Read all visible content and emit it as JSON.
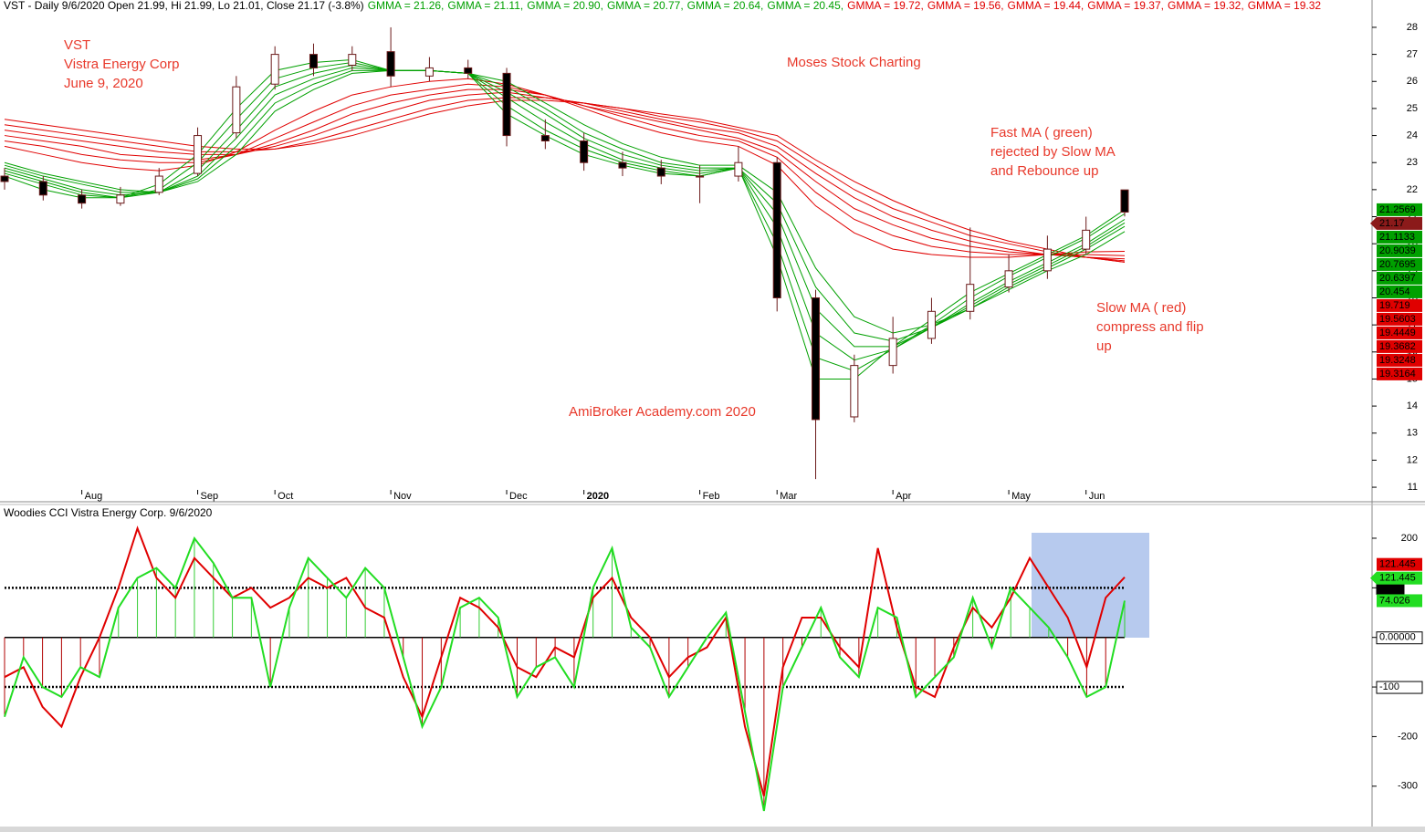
{
  "chart_data": [
    {
      "type": "candlestick",
      "header": "VST - Daily 9/6/2020 Open 21.99, Hi 21.99, Lo 21.01, Close 21.17 (-3.8%)",
      "annotations": [
        [
          "VST",
          "Vistra Energy Corp",
          "June 9, 2020"
        ],
        [
          "Moses Stock Charting"
        ],
        [
          "Fast MA  ( green)",
          "rejected by Slow MA",
          "and Rebounce up"
        ],
        [
          "Slow MA  ( red)",
          "compress and flip",
          "up"
        ],
        [
          "AmiBroker Academy.com  2020"
        ]
      ],
      "categories": [
        null,
        null,
        "Aug",
        null,
        null,
        "Sep",
        null,
        "Oct",
        null,
        null,
        "Nov",
        null,
        null,
        "Dec",
        null,
        "2020",
        null,
        null,
        "Feb",
        null,
        "Mar",
        null,
        null,
        "Apr",
        null,
        null,
        "May",
        null,
        "Jun",
        null
      ],
      "open": [
        22.5,
        22.3,
        21.8,
        21.5,
        21.9,
        22.6,
        24.1,
        25.9,
        27.0,
        26.6,
        27.1,
        26.2,
        26.5,
        26.3,
        24.0,
        23.8,
        23.0,
        22.8,
        22.5,
        22.5,
        23.0,
        18.0,
        13.6,
        15.5,
        16.5,
        17.5,
        18.4,
        19.0,
        19.8,
        21.99
      ],
      "high": [
        22.8,
        22.5,
        22.0,
        22.1,
        22.8,
        24.3,
        26.2,
        27.3,
        27.4,
        27.3,
        28.0,
        26.9,
        26.8,
        26.5,
        24.6,
        24.1,
        23.4,
        23.1,
        22.9,
        23.6,
        23.2,
        18.3,
        15.9,
        17.3,
        18.0,
        20.6,
        19.6,
        20.3,
        21.0,
        21.99
      ],
      "low": [
        22.0,
        21.6,
        21.3,
        21.4,
        21.8,
        22.5,
        23.9,
        25.7,
        26.2,
        26.4,
        25.8,
        26.0,
        26.1,
        23.6,
        23.5,
        22.7,
        22.5,
        22.2,
        21.5,
        22.3,
        17.5,
        11.3,
        13.4,
        15.2,
        16.3,
        17.2,
        18.2,
        18.7,
        19.6,
        21.01
      ],
      "close": [
        22.3,
        21.8,
        21.5,
        21.8,
        22.5,
        24.0,
        25.8,
        27.0,
        26.5,
        27.0,
        26.2,
        26.5,
        26.3,
        24.0,
        23.8,
        23.0,
        22.8,
        22.5,
        22.5,
        23.0,
        18.0,
        13.5,
        15.5,
        16.5,
        17.5,
        18.5,
        19.0,
        19.8,
        20.5,
        21.17
      ],
      "up_color": "#ffffff",
      "down_color": "#000000",
      "wick_color": "#6b1a1a",
      "series": [
        {
          "name": "GMMA = 21.26,",
          "color": "#00a000",
          "values": [
            22.5,
            22.0,
            21.7,
            21.7,
            22.2,
            23.3,
            25.0,
            26.4,
            26.7,
            26.8,
            26.4,
            26.4,
            26.3,
            24.8,
            24.0,
            23.3,
            22.9,
            22.6,
            22.5,
            22.8,
            19.5,
            15.0,
            15.0,
            16.2,
            17.2,
            18.2,
            18.9,
            19.6,
            20.3,
            21.26
          ]
        },
        {
          "name": "GMMA = 21.11,",
          "color": "#00a000",
          "values": [
            22.6,
            22.2,
            21.8,
            21.7,
            22.0,
            23.0,
            24.6,
            26.1,
            26.5,
            26.7,
            26.4,
            26.4,
            26.3,
            25.1,
            24.2,
            23.5,
            23.0,
            22.7,
            22.5,
            22.8,
            20.0,
            15.8,
            15.3,
            16.1,
            17.0,
            18.0,
            18.8,
            19.5,
            20.2,
            21.11
          ]
        },
        {
          "name": "GMMA = 20.90,",
          "color": "#00a000",
          "values": [
            22.7,
            22.3,
            21.9,
            21.7,
            21.9,
            22.7,
            24.2,
            25.8,
            26.3,
            26.6,
            26.4,
            26.4,
            26.3,
            25.4,
            24.5,
            23.7,
            23.1,
            22.8,
            22.6,
            22.8,
            20.6,
            16.7,
            15.7,
            16.1,
            16.9,
            17.8,
            18.6,
            19.3,
            20.0,
            20.9
          ]
        },
        {
          "name": "GMMA = 20.77,",
          "color": "#00a000",
          "values": [
            22.8,
            22.4,
            22.0,
            21.8,
            21.9,
            22.5,
            23.9,
            25.5,
            26.1,
            26.5,
            26.4,
            26.4,
            26.3,
            25.6,
            24.8,
            23.9,
            23.3,
            22.9,
            22.7,
            22.8,
            21.1,
            17.6,
            16.2,
            16.2,
            16.9,
            17.7,
            18.5,
            19.2,
            19.9,
            20.77
          ]
        },
        {
          "name": "GMMA = 20.64,",
          "color": "#00a000",
          "values": [
            22.9,
            22.5,
            22.2,
            21.9,
            21.9,
            22.4,
            23.6,
            25.2,
            25.9,
            26.4,
            26.4,
            26.4,
            26.3,
            25.8,
            25.0,
            24.1,
            23.5,
            23.0,
            22.8,
            22.8,
            21.5,
            18.4,
            16.7,
            16.4,
            16.9,
            17.6,
            18.4,
            19.1,
            19.8,
            20.64
          ]
        },
        {
          "name": "GMMA = 20.45,",
          "color": "#00a000",
          "values": [
            23.0,
            22.6,
            22.3,
            22.0,
            21.9,
            22.3,
            23.3,
            24.9,
            25.7,
            26.3,
            26.4,
            26.4,
            26.3,
            26.0,
            25.2,
            24.4,
            23.7,
            23.2,
            22.9,
            22.9,
            21.9,
            19.1,
            17.3,
            16.7,
            17.0,
            17.6,
            18.3,
            19.0,
            19.6,
            20.45
          ]
        },
        {
          "name": "GMMA = 19.72,",
          "color": "#e00000",
          "values": [
            23.6,
            23.3,
            23.0,
            22.8,
            22.7,
            22.9,
            23.4,
            24.2,
            24.9,
            25.5,
            25.8,
            26.0,
            26.1,
            25.9,
            25.5,
            25.0,
            24.5,
            24.1,
            23.8,
            23.6,
            22.9,
            21.4,
            20.4,
            19.8,
            19.6,
            19.5,
            19.5,
            19.6,
            19.7,
            19.72
          ]
        },
        {
          "name": "GMMA = 19.56,",
          "color": "#e00000",
          "values": [
            23.8,
            23.6,
            23.3,
            23.1,
            23.0,
            23.0,
            23.3,
            23.9,
            24.5,
            25.1,
            25.5,
            25.7,
            25.9,
            25.8,
            25.5,
            25.1,
            24.7,
            24.3,
            24.0,
            23.8,
            23.2,
            21.9,
            20.9,
            20.3,
            19.9,
            19.7,
            19.6,
            19.6,
            19.6,
            19.56
          ]
        },
        {
          "name": "GMMA = 19.44,",
          "color": "#e00000",
          "values": [
            24.0,
            23.8,
            23.6,
            23.3,
            23.2,
            23.1,
            23.3,
            23.7,
            24.2,
            24.8,
            25.2,
            25.5,
            25.7,
            25.7,
            25.5,
            25.1,
            24.8,
            24.5,
            24.2,
            23.9,
            23.4,
            22.3,
            21.3,
            20.7,
            20.2,
            19.9,
            19.7,
            19.6,
            19.5,
            19.44
          ]
        },
        {
          "name": "GMMA = 19.37,",
          "color": "#e00000",
          "values": [
            24.2,
            24.0,
            23.8,
            23.6,
            23.4,
            23.3,
            23.3,
            23.6,
            24.0,
            24.5,
            24.9,
            25.3,
            25.5,
            25.6,
            25.4,
            25.2,
            24.9,
            24.6,
            24.3,
            24.1,
            23.6,
            22.6,
            21.7,
            21.0,
            20.5,
            20.1,
            19.8,
            19.6,
            19.5,
            19.37
          ]
        },
        {
          "name": "GMMA = 19.32,",
          "color": "#e00000",
          "values": [
            24.4,
            24.2,
            24.0,
            23.8,
            23.6,
            23.4,
            23.4,
            23.5,
            23.8,
            24.2,
            24.6,
            25.0,
            25.3,
            25.4,
            25.4,
            25.2,
            25.0,
            24.7,
            24.5,
            24.2,
            23.8,
            22.9,
            22.0,
            21.3,
            20.8,
            20.3,
            20.0,
            19.7,
            19.5,
            19.32
          ]
        },
        {
          "name": "GMMA = 19.32",
          "color": "#e00000",
          "values": [
            24.6,
            24.4,
            24.2,
            24.0,
            23.8,
            23.6,
            23.5,
            23.5,
            23.7,
            24.0,
            24.4,
            24.8,
            25.1,
            25.3,
            25.3,
            25.2,
            25.0,
            24.8,
            24.6,
            24.3,
            24.0,
            23.1,
            22.3,
            21.6,
            21.0,
            20.5,
            20.1,
            19.8,
            19.5,
            19.32
          ]
        }
      ],
      "price_labels": [
        {
          "value": 21.2569,
          "color": "#00a000"
        },
        {
          "value": 21.17,
          "color": "#8b1a1a",
          "arrow": true
        },
        {
          "value": 21.1133,
          "color": "#00a000"
        },
        {
          "value": 20.9039,
          "color": "#00a000"
        },
        {
          "value": 20.7695,
          "color": "#00a000"
        },
        {
          "value": 20.6397,
          "color": "#00a000"
        },
        {
          "value": 20.454,
          "color": "#00a000"
        },
        {
          "value": 19.719,
          "color": "#e00000"
        },
        {
          "value": 19.5603,
          "color": "#e00000"
        },
        {
          "value": 19.4449,
          "color": "#e00000"
        },
        {
          "value": 19.3682,
          "color": "#e00000"
        },
        {
          "value": 19.3248,
          "color": "#e00000"
        },
        {
          "value": 19.3164,
          "color": "#e00000"
        }
      ],
      "ylim": [
        10.53,
        29.01
      ],
      "yticks": [
        11,
        12,
        13,
        14,
        15,
        16,
        17,
        18,
        19,
        20,
        21,
        22,
        23,
        24,
        25,
        26,
        27,
        28
      ]
    },
    {
      "type": "cci",
      "title": "Woodies CCI  Vistra Energy Corp. 9/6/2020",
      "series": [
        {
          "color": "#e00000",
          "values": [
            -80,
            -60,
            -140,
            -180,
            -80,
            0,
            100,
            220,
            120,
            80,
            160,
            120,
            80,
            100,
            60,
            80,
            120,
            100,
            120,
            60,
            40,
            -80,
            -160,
            -40,
            80,
            60,
            20,
            -60,
            -80,
            -20,
            -40,
            80,
            120,
            40,
            0,
            -80,
            -40,
            -20,
            40,
            -180,
            -320,
            -60,
            40,
            40,
            -20,
            -60,
            180,
            20,
            -100,
            -120,
            -20,
            60,
            20,
            80,
            160,
            100,
            40,
            -60,
            80,
            121.445
          ]
        },
        {
          "color": "#22dd22",
          "histogram": true,
          "values": [
            -160,
            -40,
            -100,
            -120,
            -60,
            -80,
            60,
            120,
            140,
            100,
            200,
            150,
            80,
            80,
            -100,
            60,
            160,
            120,
            80,
            140,
            100,
            -40,
            -180,
            -100,
            60,
            80,
            40,
            -120,
            -60,
            -40,
            -100,
            100,
            180,
            20,
            -20,
            -120,
            -60,
            0,
            50,
            -150,
            -350,
            -100,
            -20,
            60,
            -40,
            -80,
            60,
            40,
            -120,
            -80,
            -40,
            80,
            -20,
            100,
            60,
            20,
            -40,
            -120,
            -100,
            74.026
          ]
        }
      ],
      "hist_up_color": "#33cc33",
      "hist_down_color": "#b00000",
      "value_labels": [
        {
          "value": 121.445,
          "color": "#e00000"
        },
        {
          "value": 121.445,
          "color": "#22dd22",
          "arrow": true
        },
        {
          "value": 74.026,
          "color": "#22dd22"
        }
      ],
      "reference_lines": [
        {
          "value": 100,
          "style": "dotted",
          "box": "dark"
        },
        {
          "value": 0,
          "style": "solid",
          "box": "light"
        },
        {
          "value": -100,
          "style": "dotted",
          "box": "light"
        }
      ],
      "ylim": [
        -385,
        268
      ],
      "yticks": [
        200,
        100,
        {
          "value": 0,
          "label": "0.00000"
        },
        -100,
        -200,
        -300
      ]
    }
  ]
}
